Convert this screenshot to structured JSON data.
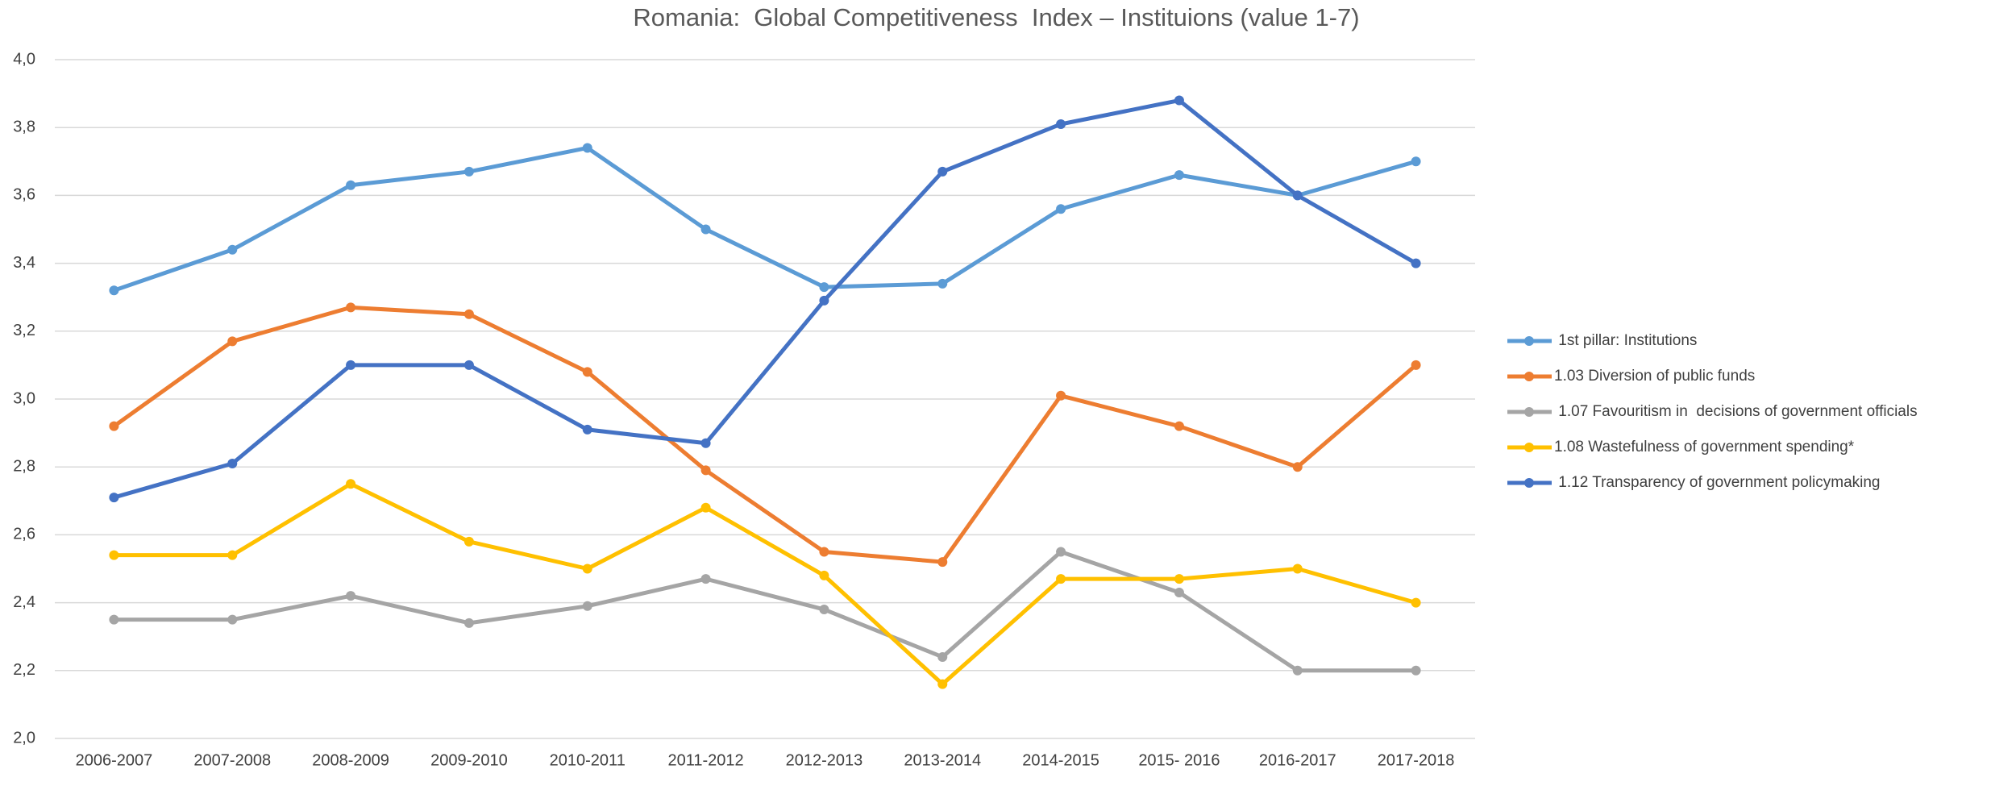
{
  "chart_data": {
    "type": "line",
    "title": "Romania:  Global Competitiveness  Index – Instituions (value 1-7)",
    "categories": [
      "2006-2007",
      "2007-2008",
      "2008-2009",
      "2009-2010",
      "2010-2011",
      "2011-2012",
      "2012-2013",
      "2013-2014",
      "2014-2015",
      "2015- 2016",
      "2016-2017",
      "2017-2018"
    ],
    "series": [
      {
        "name": " 1st pillar: Institutions",
        "color": "#5b9bd5",
        "values": [
          3.32,
          3.44,
          3.63,
          3.67,
          3.74,
          3.5,
          3.33,
          3.34,
          3.56,
          3.66,
          3.6,
          3.7
        ]
      },
      {
        "name": "1.03 Diversion of public funds",
        "color": "#ed7d31",
        "values": [
          2.92,
          3.17,
          3.27,
          3.25,
          3.08,
          2.79,
          2.55,
          2.52,
          3.01,
          2.92,
          2.8,
          3.1
        ]
      },
      {
        "name": " 1.07 Favouritism in  decisions of government officials",
        "color": "#a5a5a5",
        "values": [
          2.35,
          2.35,
          2.42,
          2.34,
          2.39,
          2.47,
          2.38,
          2.24,
          2.55,
          2.43,
          2.2,
          2.2
        ]
      },
      {
        "name": "1.08 Wastefulness of government spending*",
        "color": "#ffc000",
        "values": [
          2.54,
          2.54,
          2.75,
          2.58,
          2.5,
          2.68,
          2.48,
          2.16,
          2.47,
          2.47,
          2.5,
          2.4
        ]
      },
      {
        "name": " 1.12 Transparency of government policymaking",
        "color": "#4472c4",
        "values": [
          2.71,
          2.81,
          3.1,
          3.1,
          2.91,
          2.87,
          3.29,
          3.67,
          3.81,
          3.88,
          3.6,
          3.4
        ]
      }
    ],
    "ylim": [
      2,
      4
    ],
    "yticks": [
      {
        "value": 2,
        "label": "2,0"
      },
      {
        "value": 2.2,
        "label": "2,2"
      },
      {
        "value": 2.4,
        "label": "2,4"
      },
      {
        "value": 2.6,
        "label": "2,6"
      },
      {
        "value": 2.8,
        "label": "2,8"
      },
      {
        "value": 3,
        "label": "3,0"
      },
      {
        "value": 3.2,
        "label": "3,2"
      },
      {
        "value": 3.4,
        "label": "3,4"
      },
      {
        "value": 3.6,
        "label": "3,6"
      },
      {
        "value": 3.8,
        "label": "3,8"
      },
      {
        "value": 4,
        "label": "4,0"
      }
    ],
    "grid": true,
    "legend": "right"
  }
}
